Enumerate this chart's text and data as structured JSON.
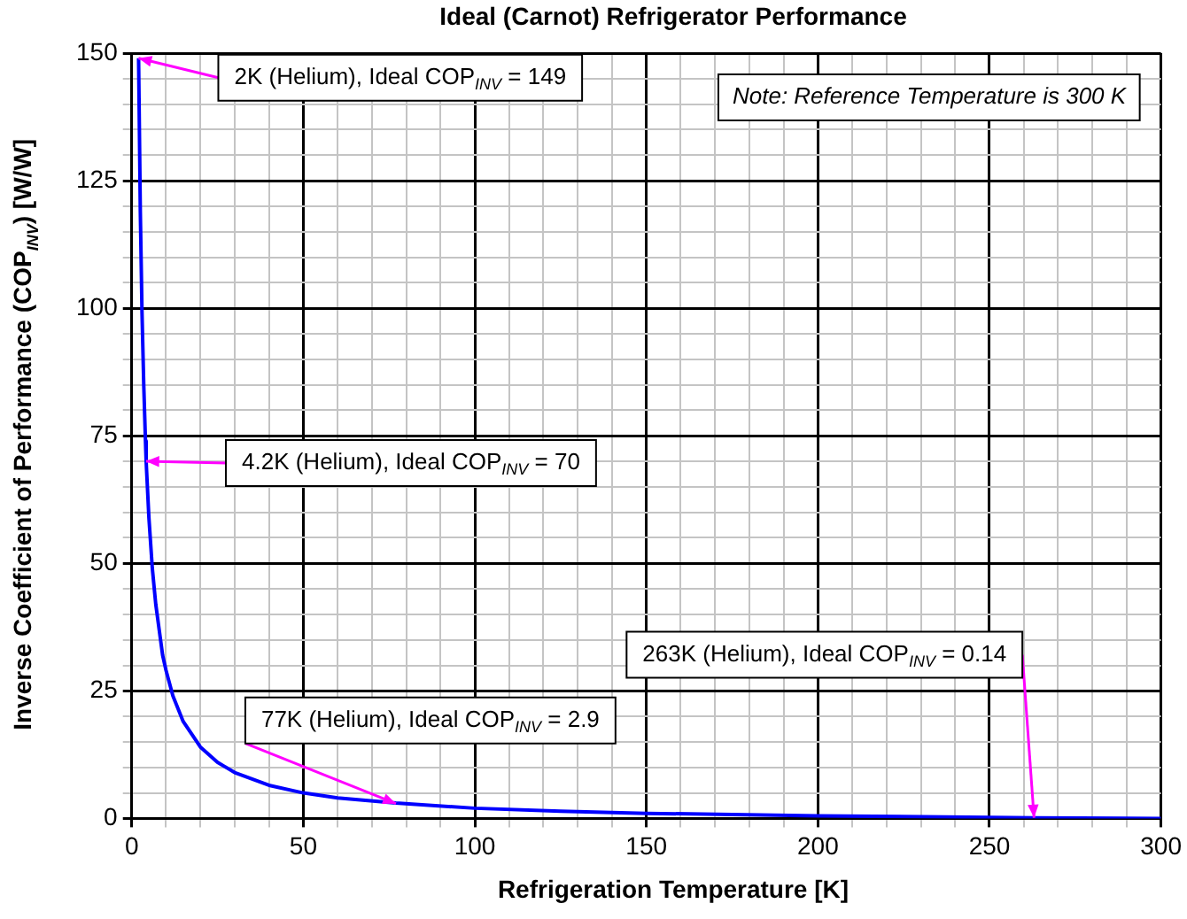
{
  "chart_data": {
    "type": "line",
    "title": "Ideal (Carnot) Refrigerator Performance",
    "xlabel": "Refrigeration Temperature [K]",
    "ylabel": "Inverse Coefficient of Performance (COP$_{INV}$) [W/W]",
    "x": [
      2,
      2.5,
      3,
      3.5,
      4,
      4.2,
      5,
      6,
      7,
      8,
      9,
      10,
      12,
      15,
      20,
      25,
      30,
      40,
      50,
      60,
      77,
      100,
      125,
      150,
      200,
      250,
      263,
      300
    ],
    "series": [
      {
        "color": "#0000ff",
        "values": [
          149,
          119,
          99,
          85,
          74,
          70,
          59,
          49,
          42,
          37,
          32,
          29,
          24,
          19,
          14,
          11,
          9,
          6.5,
          5,
          4,
          3,
          2,
          1.4,
          1,
          0.5,
          0.2,
          0.1,
          0
        ]
      }
    ],
    "xlim": [
      0,
      300
    ],
    "ylim": [
      0,
      150
    ],
    "xticks": [
      0,
      {
        "value": 10,
        "label": null
      },
      {
        "value": 20,
        "label": null
      },
      {
        "value": 30,
        "label": null
      },
      {
        "value": 40,
        "label": null
      },
      50,
      {
        "value": 60,
        "label": null
      },
      {
        "value": 70,
        "label": null
      },
      {
        "value": 80,
        "label": null
      },
      {
        "value": 90,
        "label": null
      },
      100,
      {
        "value": 110,
        "label": null
      },
      {
        "value": 120,
        "label": null
      },
      {
        "value": 130,
        "label": null
      },
      {
        "value": 140,
        "label": null
      },
      150,
      {
        "value": 160,
        "label": null
      },
      {
        "value": 170,
        "label": null
      },
      {
        "value": 180,
        "label": null
      },
      {
        "value": 190,
        "label": null
      },
      200,
      {
        "value": 210,
        "label": null
      },
      {
        "value": 220,
        "label": null
      },
      {
        "value": 230,
        "label": null
      },
      {
        "value": 240,
        "label": null
      },
      250,
      {
        "value": 260,
        "label": null
      },
      {
        "value": 270,
        "label": null
      },
      {
        "value": 280,
        "label": null
      },
      {
        "value": 290,
        "label": null
      },
      300
    ],
    "yticks": [
      0,
      {
        "value": 5,
        "label": null
      },
      {
        "value": 10,
        "label": null
      },
      {
        "value": 15,
        "label": null
      },
      {
        "value": 20,
        "label": null
      },
      25,
      {
        "value": 30,
        "label": null
      },
      {
        "value": 35,
        "label": null
      },
      {
        "value": 40,
        "label": null
      },
      {
        "value": 45,
        "label": null
      },
      50,
      {
        "value": 55,
        "label": null
      },
      {
        "value": 60,
        "label": null
      },
      {
        "value": 65,
        "label": null
      },
      {
        "value": 70,
        "label": null
      },
      75,
      {
        "value": 80,
        "label": null
      },
      {
        "value": 85,
        "label": null
      },
      {
        "value": 90,
        "label": null
      },
      {
        "value": 95,
        "label": null
      },
      100,
      {
        "value": 105,
        "label": null
      },
      {
        "value": 110,
        "label": null
      },
      {
        "value": 115,
        "label": null
      },
      {
        "value": 120,
        "label": null
      },
      125,
      {
        "value": 130,
        "label": null
      },
      {
        "value": 135,
        "label": null
      },
      {
        "value": 140,
        "label": null
      },
      {
        "value": 145,
        "label": null
      },
      150
    ],
    "grid": true,
    "legend": false,
    "marker": "none",
    "line_style": "solid",
    "annotations": [
      {
        "text": "2K (Helium), Ideal COP$_{INV}$ = 149",
        "x": 2,
        "y": 149
      },
      {
        "text": "4.2K (Helium), Ideal COP$_{INV}$ = 70",
        "x": 4.2,
        "y": 70
      },
      {
        "text": "77K (Helium), Ideal COP$_{INV}$ = 2.9",
        "x": 77,
        "y": 2.9
      },
      {
        "text": "263K (Helium), Ideal COP$_{INV}$ = 0.14",
        "x": 263,
        "y": 0.14
      },
      "Note: Reference Temperature is 300 K"
    ]
  }
}
